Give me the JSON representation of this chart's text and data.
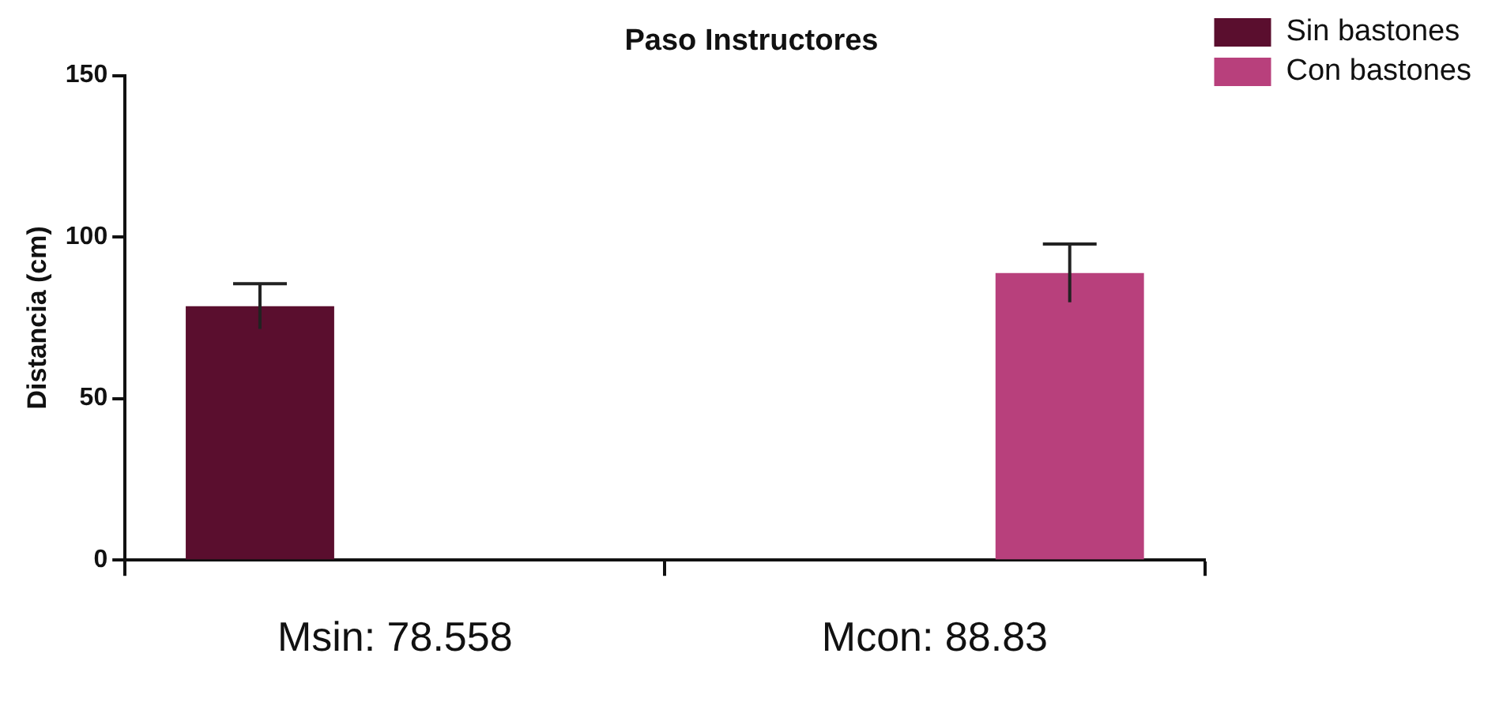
{
  "chart_data": {
    "type": "bar",
    "title": "Paso Instructores",
    "ylabel": "Distancia (cm)",
    "categories": [
      null,
      null
    ],
    "series": [
      {
        "name": "Sin bastones",
        "color": "#5a0e2e",
        "values": [
          78.558,
          null
        ],
        "errors": [
          7,
          null
        ]
      },
      {
        "name": "Con bastones",
        "color": "#b8407c",
        "values": [
          null,
          88.83
        ],
        "errors": [
          null,
          9
        ]
      }
    ],
    "ylim": [
      0,
      150
    ],
    "yticks": [
      0,
      50,
      100,
      150
    ],
    "grid": false,
    "legend": "top right",
    "annotations": [
      "Msin: 78.558",
      "Mcon: 88.83"
    ]
  }
}
